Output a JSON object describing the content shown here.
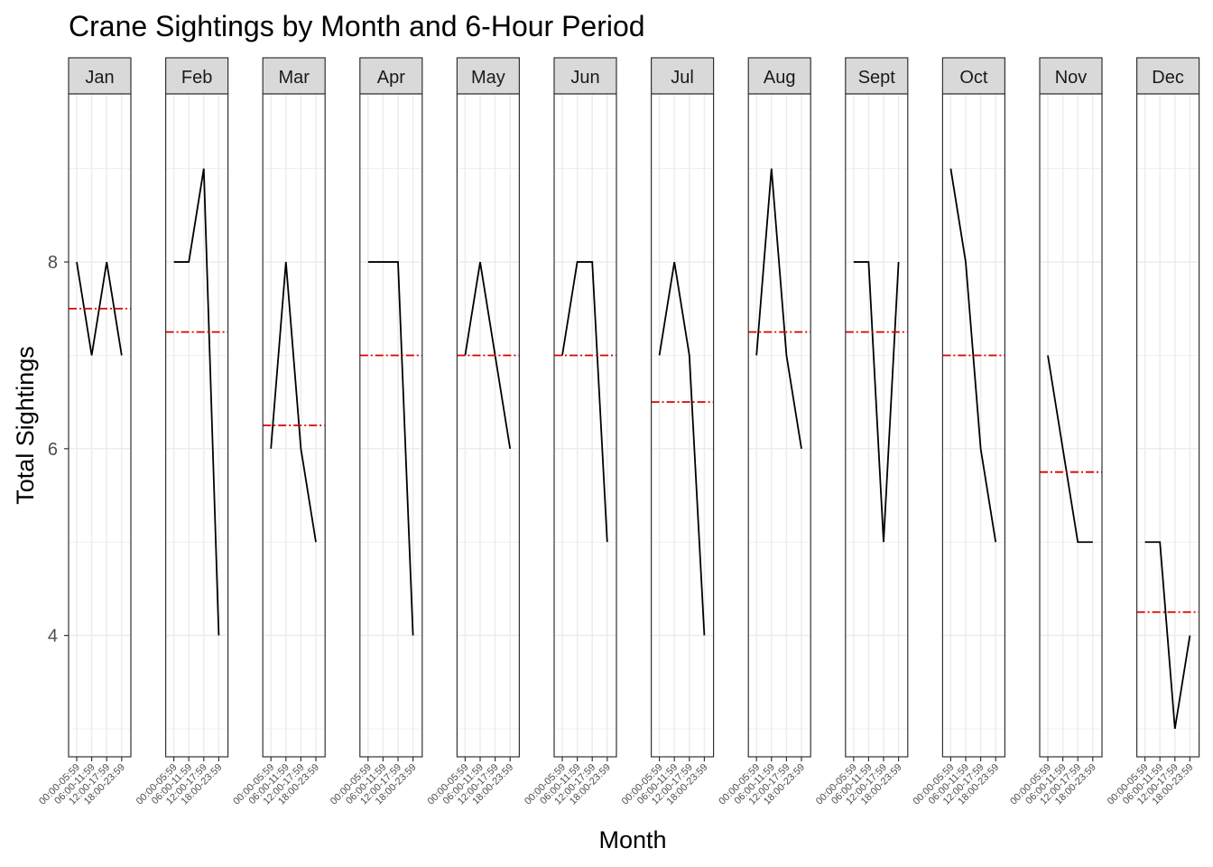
{
  "chart_data": {
    "type": "line",
    "title": "Crane Sightings by Month and 6-Hour Period",
    "xlabel": "Month",
    "ylabel": "Total Sightings",
    "ylim": [
      2.7,
      9.8
    ],
    "yticks": [
      4,
      6,
      8
    ],
    "grid": true,
    "facet_by": "month",
    "periods": [
      "00:00-05:59",
      "06:00-11:59",
      "12:00-17:59",
      "18:00-23:59"
    ],
    "colors": {
      "line": "#000000",
      "mean_line": "#dd0000",
      "strip_fill": "#d9d9d9",
      "grid": "#ebebeb"
    },
    "panels": [
      {
        "month": "Jan",
        "values": [
          8,
          7,
          8,
          7
        ],
        "mean": 7.5
      },
      {
        "month": "Feb",
        "values": [
          8,
          8,
          9,
          4
        ],
        "mean": 7.25
      },
      {
        "month": "Mar",
        "values": [
          6,
          8,
          6,
          5
        ],
        "mean": 6.25
      },
      {
        "month": "Apr",
        "values": [
          8,
          8,
          8,
          4
        ],
        "mean": 7.0
      },
      {
        "month": "May",
        "values": [
          7,
          8,
          7,
          6
        ],
        "mean": 7.0
      },
      {
        "month": "Jun",
        "values": [
          7,
          8,
          8,
          5
        ],
        "mean": 7.0
      },
      {
        "month": "Jul",
        "values": [
          7,
          8,
          7,
          4
        ],
        "mean": 6.5
      },
      {
        "month": "Aug",
        "values": [
          7,
          9,
          7,
          6
        ],
        "mean": 7.25
      },
      {
        "month": "Sept",
        "values": [
          8,
          8,
          5,
          8
        ],
        "mean": 7.25
      },
      {
        "month": "Oct",
        "values": [
          9,
          8,
          6,
          5
        ],
        "mean": 7.0
      },
      {
        "month": "Nov",
        "values": [
          7,
          6,
          5,
          5
        ],
        "mean": 5.75
      },
      {
        "month": "Dec",
        "values": [
          5,
          5,
          3,
          4
        ],
        "mean": 4.25
      }
    ]
  }
}
